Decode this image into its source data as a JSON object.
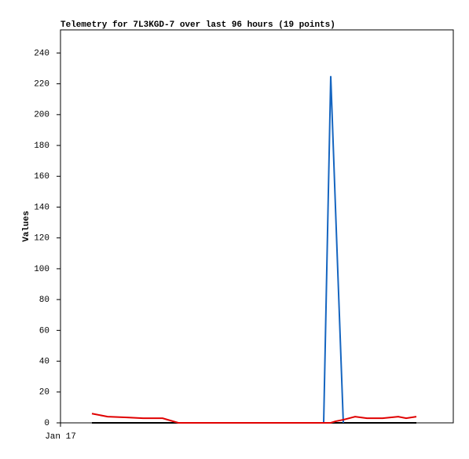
{
  "chart_data": {
    "type": "line",
    "title": "Telemetry for 7L3KGD-7 over last 96 hours (19 points)",
    "y_label": "Values",
    "x": [
      8,
      12,
      17,
      21,
      26,
      30,
      40,
      50,
      60,
      67,
      68.8,
      70,
      72,
      75,
      78,
      82,
      86,
      88,
      90.6
    ],
    "xlim": [
      0,
      100
    ],
    "xticks": [
      {
        "value": 0,
        "label": "Jan 17"
      }
    ],
    "ylim": [
      0,
      255
    ],
    "yticks": [
      0,
      20,
      40,
      60,
      80,
      100,
      120,
      140,
      160,
      180,
      200,
      220,
      240
    ],
    "series": [
      {
        "color": "#000000",
        "values": [
          0,
          0,
          0,
          0,
          0,
          0,
          0,
          0,
          0,
          0,
          0,
          0,
          0,
          0,
          0,
          0,
          0,
          0,
          0
        ]
      },
      {
        "color": "#1565c0",
        "values": [
          null,
          null,
          null,
          null,
          null,
          null,
          null,
          null,
          null,
          0,
          225,
          140,
          0,
          null,
          null,
          null,
          null,
          null,
          null
        ]
      },
      {
        "color": "#e00000",
        "values": [
          6,
          4,
          3.5,
          3,
          3,
          0,
          0,
          0,
          0,
          0,
          0,
          1,
          2,
          4,
          3,
          3,
          4,
          3,
          4
        ]
      }
    ]
  }
}
